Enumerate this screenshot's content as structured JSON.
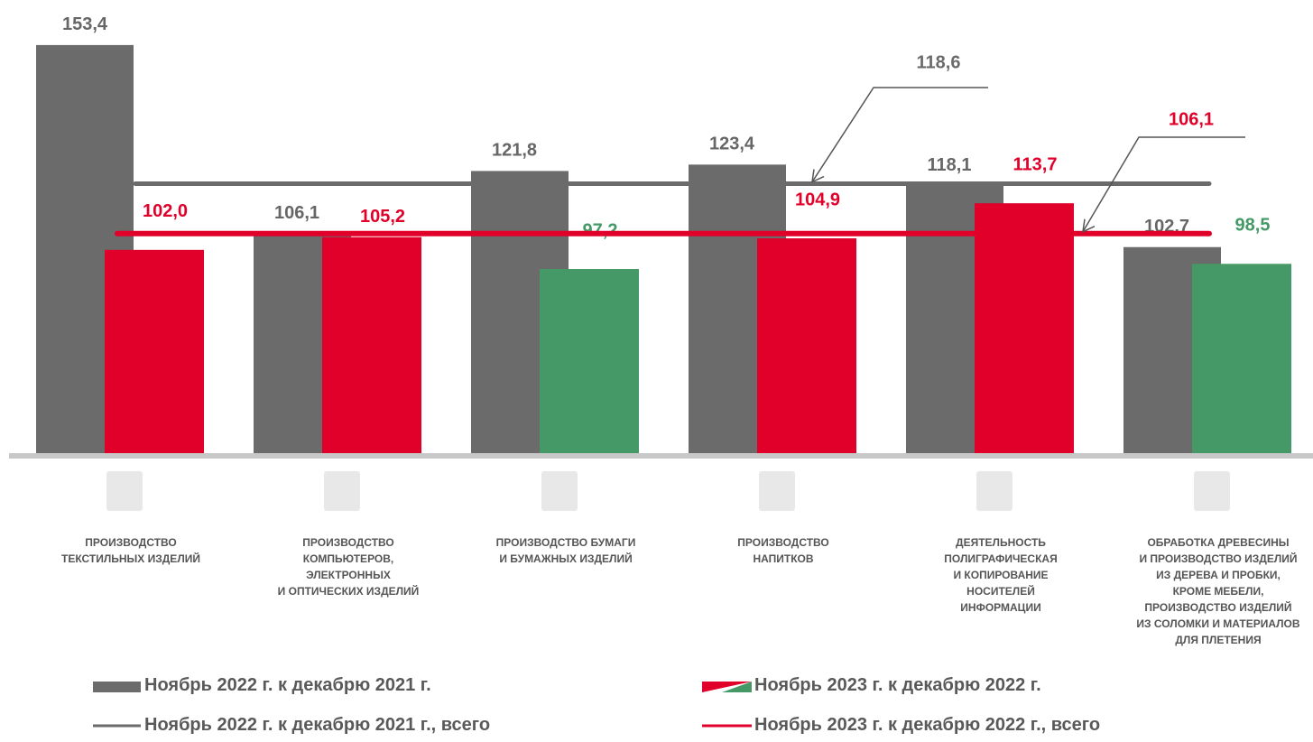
{
  "chart_data": {
    "type": "bar",
    "categories": [
      "ПРОИЗВОДСТВО\nТЕКСТИЛЬНЫХ ИЗДЕЛИЙ",
      "ПРОИЗВОДСТВО\nКОМПЬЮТЕРОВ,\nЭЛЕКТРОННЫХ\nИ ОПТИЧЕСКИХ ИЗДЕЛИЙ",
      "ПРОИЗВОДСТВО БУМАГИ\nИ БУМАЖНЫХ ИЗДЕЛИЙ",
      "ПРОИЗВОДСТВО\nНАПИТКОВ",
      "ДЕЯТЕЛЬНОСТЬ\nПОЛИГРАФИЧЕСКАЯ\nИ КОПИРОВАНИЕ\nНОСИТЕЛЕЙ\nИНФОРМАЦИИ",
      "ОБРАБОТКА ДРЕВЕСИНЫ\nИ ПРОИЗВОДСТВО ИЗДЕЛИЙ\nИЗ ДЕРЕВА И ПРОБКИ,\nКРОМЕ МЕБЕЛИ,\nПРОИЗВОДСТВО ИЗДЕЛИЙ\nИЗ СОЛОМКИ И МАТЕРИАЛОВ\nДЛЯ ПЛЕТЕНИЯ"
    ],
    "series": [
      {
        "name": "Ноябрь 2022 г. к декабрю 2021 г.",
        "color": "#6b6b6b",
        "values": [
          153.4,
          106.1,
          121.8,
          123.4,
          118.1,
          102.7
        ],
        "value_labels": [
          "153,4",
          "106,1",
          "121,8",
          "123,4",
          "118,1",
          "102,7"
        ]
      },
      {
        "name": "Ноябрь 2023 г. к декабрю 2022 г.",
        "colors": [
          "#e0002a",
          "#e0002a",
          "#449966",
          "#e0002a",
          "#e0002a",
          "#449966"
        ],
        "values": [
          102.0,
          105.2,
          97.2,
          104.9,
          113.7,
          98.5
        ],
        "value_labels": [
          "102,0",
          "105,2",
          "97,2",
          "104,9",
          "113,7",
          "98,5"
        ]
      }
    ],
    "reference_lines": [
      {
        "name": "Ноябрь 2022 г. к декабрю 2021 г., всего",
        "color": "#6b6b6b",
        "value": 118.6,
        "value_label": "118,6"
      },
      {
        "name": "Ноябрь 2023 г. к декабрю 2022 г., всего",
        "color": "#e0002a",
        "value": 106.1,
        "value_label": "106,1"
      }
    ],
    "ylim": [
      51,
      164.7
    ]
  }
}
